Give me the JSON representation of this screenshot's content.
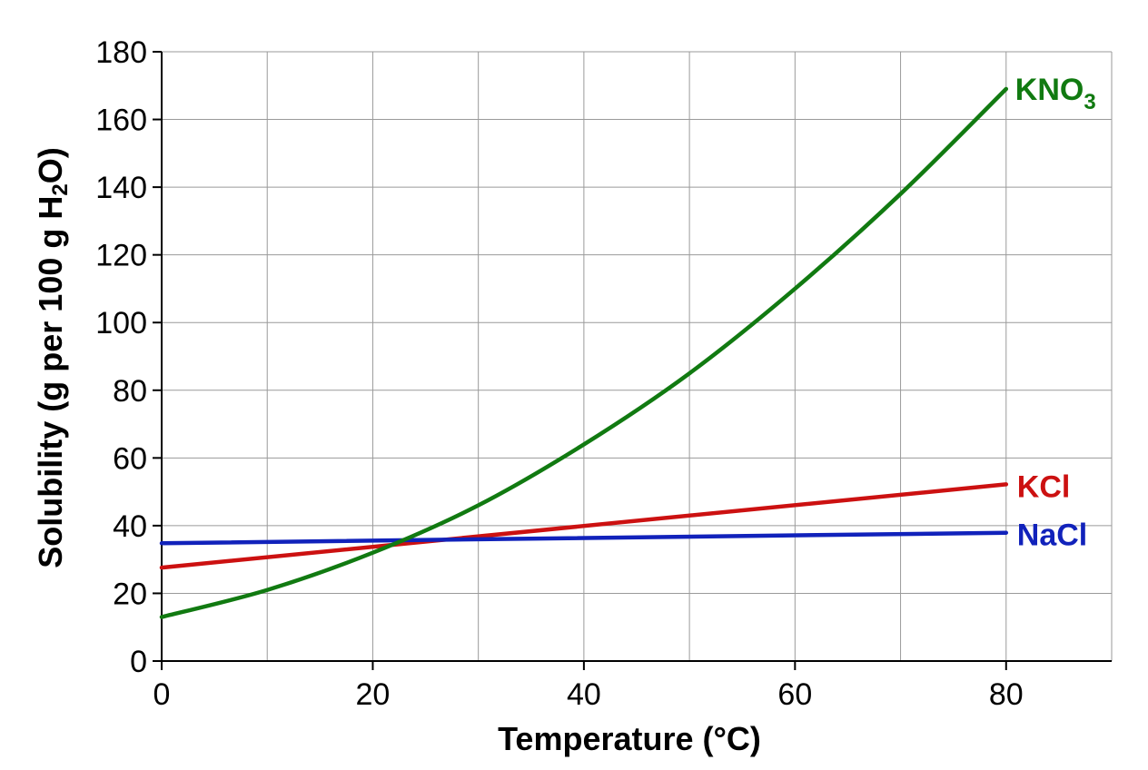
{
  "chart_data": {
    "type": "line",
    "title": "",
    "xlabel": "Temperature (°C)",
    "ylabel_parts": [
      "Solubility (g per 100 g H",
      "2",
      "O)"
    ],
    "xlim": [
      0,
      90
    ],
    "ylim": [
      0,
      180
    ],
    "x_ticks": [
      0,
      20,
      40,
      60,
      80
    ],
    "x_tick_labels": [
      "0",
      "20",
      "40",
      "60",
      "80"
    ],
    "y_ticks": [
      0,
      20,
      40,
      60,
      80,
      100,
      120,
      140,
      160,
      180
    ],
    "y_tick_labels": [
      "0",
      "20",
      "40",
      "60",
      "80",
      "100",
      "120",
      "140",
      "160",
      "180"
    ],
    "x_gridlines": [
      0,
      10,
      20,
      30,
      40,
      50,
      60,
      70,
      80,
      90
    ],
    "y_gridlines": [
      20,
      40,
      60,
      80,
      100,
      120,
      140,
      160,
      180
    ],
    "grid": true,
    "legend": "inline labels at right end of each line",
    "series": [
      {
        "name": "KNO3",
        "label_parts": [
          "KNO",
          "3"
        ],
        "color": "#117a11",
        "x": [
          0,
          10,
          20,
          30,
          40,
          50,
          60,
          70,
          80
        ],
        "y": [
          13,
          21,
          32,
          46,
          64,
          85,
          110,
          138,
          169
        ]
      },
      {
        "name": "KCl",
        "label_parts": [
          "KCl"
        ],
        "color": "#cc1111",
        "x": [
          0,
          80
        ],
        "y": [
          27.6,
          52.2
        ]
      },
      {
        "name": "NaCl",
        "label_parts": [
          "NaCl"
        ],
        "color": "#1122bb",
        "x": [
          0,
          80
        ],
        "y": [
          34.8,
          37.9
        ]
      }
    ]
  }
}
